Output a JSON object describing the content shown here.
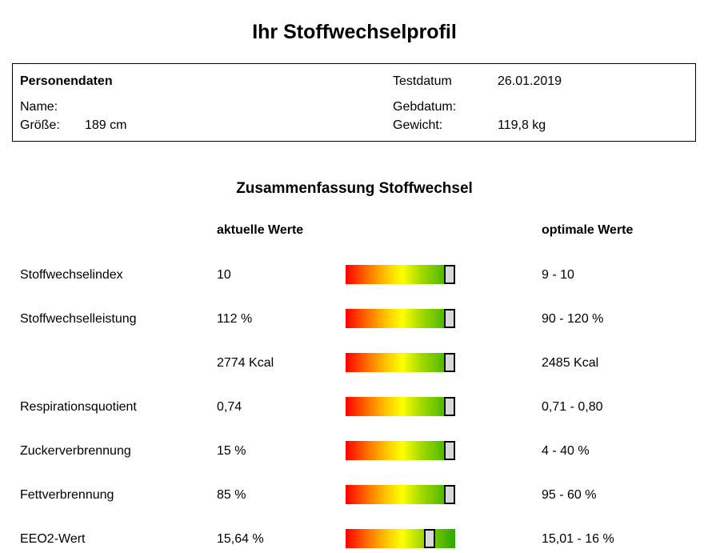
{
  "title": "Ihr Stoffwechselprofil",
  "person": {
    "heading": "Personendaten",
    "name_label": "Name:",
    "name_value": "",
    "height_label": "Größe:",
    "height_value": "189 cm",
    "testdate_label": "Testdatum",
    "testdate_value": "26.01.2019",
    "birthdate_label": "Gebdatum:",
    "birthdate_value": "",
    "weight_label": "Gewicht:",
    "weight_value": "119,8 kg"
  },
  "summary": {
    "title": "Zusammenfassung Stoffwechsel",
    "col_current": "aktuelle Werte",
    "col_optimal": "optimale Werte",
    "rows": [
      {
        "label": "Stoffwechselindex",
        "value": "10",
        "optimal": "9 - 10",
        "level": 0.97
      },
      {
        "label": "Stoffwechselleistung",
        "value": "112 %",
        "optimal": "90 - 120 %",
        "level": 0.97
      },
      {
        "label": "",
        "value": "2774 Kcal",
        "optimal": "2485 Kcal",
        "level": 0.97
      },
      {
        "label": "Respirationsquotient",
        "value": "0,74",
        "optimal": "0,71 - 0,80",
        "level": 0.97
      },
      {
        "label": "Zuckerverbrennung",
        "value": "15 %",
        "optimal": "4 - 40 %",
        "level": 0.97
      },
      {
        "label": "Fettverbrennung",
        "value": "85 %",
        "optimal": "95 - 60 %",
        "level": 0.97
      },
      {
        "label": "EEO2-Wert",
        "value": "15,64 %",
        "optimal": "15,01 - 16 %",
        "level": 0.77
      }
    ]
  }
}
